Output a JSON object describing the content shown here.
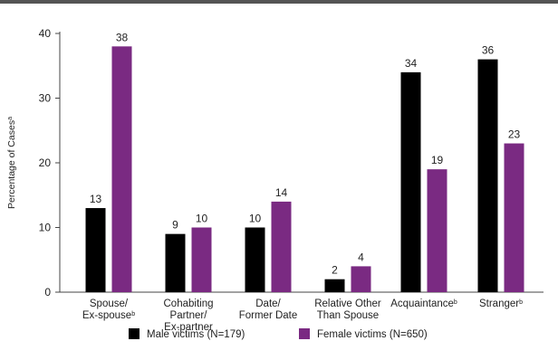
{
  "chart_data": {
    "type": "bar",
    "title": "",
    "ylabel": "Percentage of Cases",
    "ylabel_sup": "a",
    "ylim": [
      0,
      40
    ],
    "yticks": [
      0,
      10,
      20,
      30,
      40
    ],
    "categories": [
      {
        "lines": [
          "Spouse/",
          "Ex-spouse"
        ],
        "sup": "b"
      },
      {
        "lines": [
          "Cohabiting",
          "Partner/",
          "Ex-partner"
        ],
        "sup": ""
      },
      {
        "lines": [
          "Date/",
          "Former Date"
        ],
        "sup": ""
      },
      {
        "lines": [
          "Relative Other",
          "Than Spouse"
        ],
        "sup": ""
      },
      {
        "lines": [
          "Acquaintance"
        ],
        "sup": "b"
      },
      {
        "lines": [
          "Stranger"
        ],
        "sup": "b"
      }
    ],
    "series": [
      {
        "name": "Male victims (N=179)",
        "color": "#000000",
        "values": [
          13,
          9,
          10,
          2,
          34,
          36
        ]
      },
      {
        "name": "Female victims (N=650)",
        "color": "#7a2a82",
        "values": [
          38,
          10,
          14,
          4,
          19,
          23
        ]
      }
    ],
    "legend_position": "bottom",
    "grid": false
  }
}
